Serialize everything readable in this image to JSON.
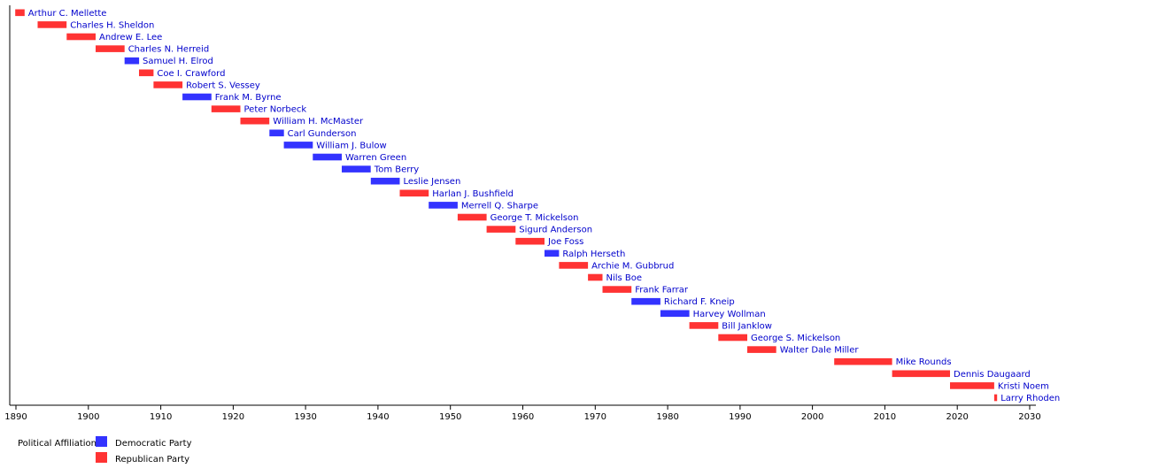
{
  "chart_data": {
    "type": "timeline",
    "title": "",
    "xlabel": "",
    "ylabel": "",
    "xlim": [
      1889,
      2030
    ],
    "xticks": [
      1890,
      1900,
      1910,
      1920,
      1930,
      1940,
      1950,
      1960,
      1970,
      1980,
      1990,
      2000,
      2010,
      2020,
      2030
    ],
    "bars": [
      {
        "name": "Arthur C. Mellette",
        "start": 1889.9,
        "end": 1891.2,
        "party": "Republican"
      },
      {
        "name": "Charles H. Sheldon",
        "start": 1893.0,
        "end": 1897.0,
        "party": "Republican"
      },
      {
        "name": "Andrew E. Lee",
        "start": 1897.0,
        "end": 1901.0,
        "party": "Republican"
      },
      {
        "name": "Charles N. Herreid",
        "start": 1901.0,
        "end": 1905.0,
        "party": "Republican"
      },
      {
        "name": "Samuel H. Elrod",
        "start": 1905.0,
        "end": 1907.0,
        "party": "Democratic"
      },
      {
        "name": "Coe I. Crawford",
        "start": 1907.0,
        "end": 1909.0,
        "party": "Republican"
      },
      {
        "name": "Robert S. Vessey",
        "start": 1909.0,
        "end": 1913.0,
        "party": "Republican"
      },
      {
        "name": "Frank M. Byrne",
        "start": 1913.0,
        "end": 1917.0,
        "party": "Democratic"
      },
      {
        "name": "Peter Norbeck",
        "start": 1917.0,
        "end": 1921.0,
        "party": "Republican"
      },
      {
        "name": "William H. McMaster",
        "start": 1921.0,
        "end": 1925.0,
        "party": "Republican"
      },
      {
        "name": "Carl Gunderson",
        "start": 1925.0,
        "end": 1927.0,
        "party": "Democratic"
      },
      {
        "name": "William J. Bulow",
        "start": 1927.0,
        "end": 1931.0,
        "party": "Democratic"
      },
      {
        "name": "Warren Green",
        "start": 1931.0,
        "end": 1935.0,
        "party": "Democratic"
      },
      {
        "name": "Tom Berry",
        "start": 1935.0,
        "end": 1939.0,
        "party": "Democratic"
      },
      {
        "name": "Leslie Jensen",
        "start": 1939.0,
        "end": 1943.0,
        "party": "Democratic"
      },
      {
        "name": "Harlan J. Bushfield",
        "start": 1943.0,
        "end": 1947.0,
        "party": "Republican"
      },
      {
        "name": "Merrell Q. Sharpe",
        "start": 1947.0,
        "end": 1951.0,
        "party": "Democratic"
      },
      {
        "name": "George T. Mickelson",
        "start": 1951.0,
        "end": 1955.0,
        "party": "Republican"
      },
      {
        "name": "Sigurd Anderson",
        "start": 1955.0,
        "end": 1959.0,
        "party": "Republican"
      },
      {
        "name": "Joe Foss",
        "start": 1959.0,
        "end": 1963.0,
        "party": "Republican"
      },
      {
        "name": "Ralph Herseth",
        "start": 1963.0,
        "end": 1965.0,
        "party": "Democratic"
      },
      {
        "name": "Archie M. Gubbrud",
        "start": 1965.0,
        "end": 1969.0,
        "party": "Republican"
      },
      {
        "name": "Nils Boe",
        "start": 1969.0,
        "end": 1971.0,
        "party": "Republican"
      },
      {
        "name": "Frank Farrar",
        "start": 1971.0,
        "end": 1975.0,
        "party": "Republican"
      },
      {
        "name": "Richard F. Kneip",
        "start": 1975.0,
        "end": 1979.0,
        "party": "Democratic"
      },
      {
        "name": "Harvey Wollman",
        "start": 1979.0,
        "end": 1983.0,
        "party": "Democratic"
      },
      {
        "name": "Bill Janklow",
        "start": 1983.0,
        "end": 1987.0,
        "party": "Republican"
      },
      {
        "name": "George S. Mickelson",
        "start": 1987.0,
        "end": 1991.0,
        "party": "Republican"
      },
      {
        "name": "Walter Dale Miller",
        "start": 1991.0,
        "end": 1995.0,
        "party": "Republican"
      },
      {
        "name": "Mike Rounds",
        "start": 2003.0,
        "end": 2011.0,
        "party": "Republican"
      },
      {
        "name": "Dennis Daugaard",
        "start": 2011.0,
        "end": 2019.0,
        "party": "Republican"
      },
      {
        "name": "Kristi Noem",
        "start": 2019.0,
        "end": 2025.1,
        "party": "Republican"
      },
      {
        "name": "Larry Rhoden",
        "start": 2025.1,
        "end": 2025.5,
        "party": "Republican"
      }
    ],
    "legend": {
      "title": "Political Affiliation:",
      "placement": "bottom-left",
      "items": [
        {
          "label": "Democratic Party",
          "party": "Democratic"
        },
        {
          "label": "Republican Party",
          "party": "Republican"
        }
      ]
    },
    "colors": {
      "Democratic": "#3333ff",
      "Republican": "#ff3333"
    }
  }
}
